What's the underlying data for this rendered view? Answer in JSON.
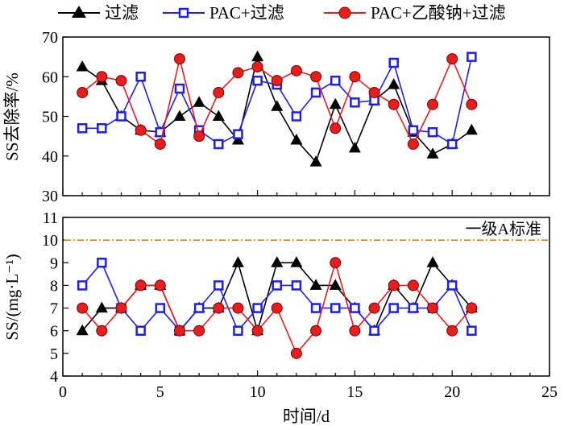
{
  "legend": {
    "s1": "过滤",
    "s2": "PAC+过滤",
    "s3": "PAC+乙酸钠+过滤"
  },
  "colors": {
    "s1": "#000000",
    "s2": "#1f1fe6",
    "s3": "#e61e1e",
    "standard": "#f07d14"
  },
  "chart_data": [
    {
      "type": "line",
      "ylabel": "SS去除率/%",
      "xlim": [
        0,
        25
      ],
      "ylim": [
        30,
        70
      ],
      "yticks": [
        30,
        40,
        50,
        60,
        70
      ],
      "x": [
        1,
        2,
        3,
        4,
        5,
        6,
        7,
        8,
        9,
        10,
        11,
        12,
        13,
        14,
        15,
        16,
        17,
        18,
        19,
        20,
        21
      ],
      "series": [
        {
          "name": "过滤",
          "marker": "triangle",
          "values": [
            62.5,
            59,
            50,
            46.5,
            46,
            50,
            53.5,
            50,
            44,
            65,
            52.5,
            44,
            38.5,
            53,
            42,
            54,
            58,
            46,
            40.5,
            43,
            46.5
          ]
        },
        {
          "name": "PAC+过滤",
          "marker": "square",
          "values": [
            47,
            47,
            50,
            60,
            46,
            57,
            46.5,
            43,
            45.5,
            59,
            58,
            50,
            56,
            59,
            53.5,
            54,
            63.5,
            46.5,
            46,
            43,
            65
          ]
        },
        {
          "name": "PAC+乙酸钠+过滤",
          "marker": "circle",
          "values": [
            56,
            60,
            59,
            46.5,
            43,
            64.5,
            45,
            56,
            61,
            62.5,
            59,
            61.5,
            60,
            47,
            60,
            56,
            53,
            43,
            53,
            64.5,
            53
          ]
        }
      ]
    },
    {
      "type": "line",
      "ylabel": "SS/(mg·L⁻¹)",
      "xlabel": "时间/d",
      "xlim": [
        0,
        25
      ],
      "ylim": [
        4,
        11
      ],
      "xticks": [
        0,
        5,
        10,
        15,
        20,
        25
      ],
      "yticks": [
        4,
        5,
        6,
        7,
        8,
        9,
        10,
        11
      ],
      "x": [
        1,
        2,
        3,
        4,
        5,
        6,
        7,
        8,
        9,
        10,
        11,
        12,
        13,
        14,
        15,
        16,
        17,
        18,
        19,
        20,
        21
      ],
      "series": [
        {
          "name": "过滤",
          "marker": "triangle",
          "values": [
            6,
            7,
            7,
            8,
            8,
            6,
            7,
            7,
            9,
            6,
            9,
            9,
            8,
            8,
            7,
            6,
            8,
            7,
            9,
            8,
            7
          ]
        },
        {
          "name": "PAC+过滤",
          "marker": "square",
          "values": [
            8,
            9,
            7,
            6,
            7,
            6,
            7,
            8,
            6,
            7,
            8,
            8,
            7,
            7,
            7,
            6,
            7,
            7,
            7,
            8,
            6
          ]
        },
        {
          "name": "PAC+乙酸钠+过滤",
          "marker": "circle",
          "values": [
            7,
            6,
            7,
            8,
            8,
            6,
            6,
            7,
            7,
            6,
            7,
            5,
            6,
            9,
            6,
            7,
            8,
            8,
            7,
            6,
            7
          ]
        }
      ],
      "reference_line": {
        "value": 10,
        "label": "一级A标准",
        "style": "dash-dot"
      }
    }
  ]
}
